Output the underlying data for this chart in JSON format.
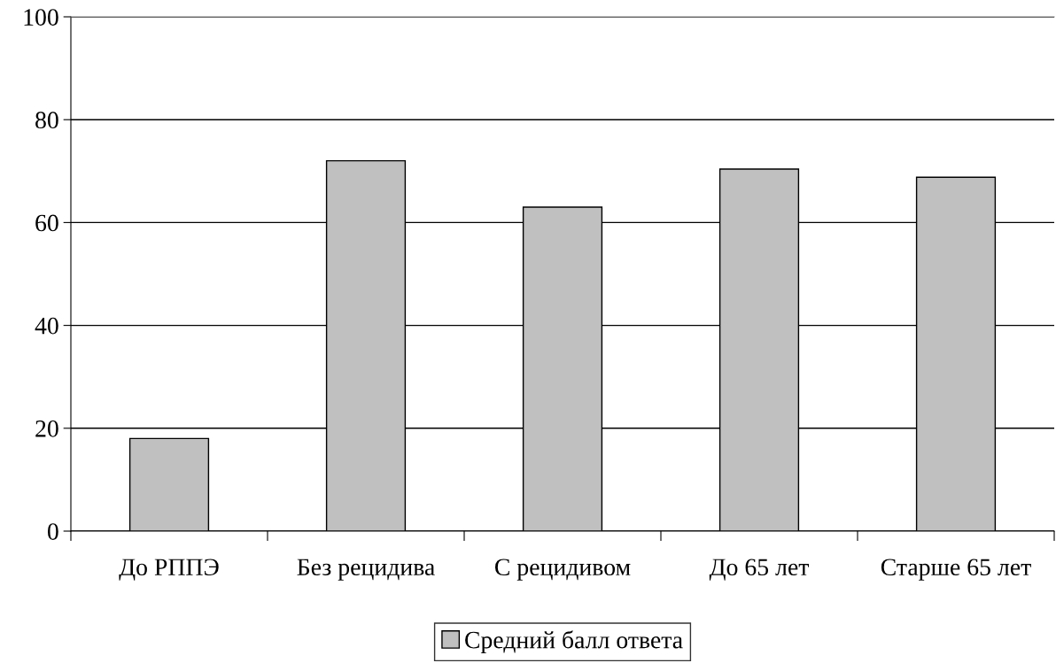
{
  "chart_data": {
    "type": "bar",
    "categories": [
      "До РППЭ",
      "Без рецидива",
      "С рецидивом",
      "До 65 лет",
      "Старше 65 лет"
    ],
    "series": [
      {
        "name": "Средний балл ответа",
        "color": "#c0c0c0",
        "values": [
          18,
          72,
          63,
          70.4,
          68.8
        ]
      }
    ],
    "ylim": [
      0,
      100
    ],
    "yticks": [
      0,
      20,
      40,
      60,
      80,
      100
    ],
    "grid": "y",
    "legend": "bottom"
  }
}
